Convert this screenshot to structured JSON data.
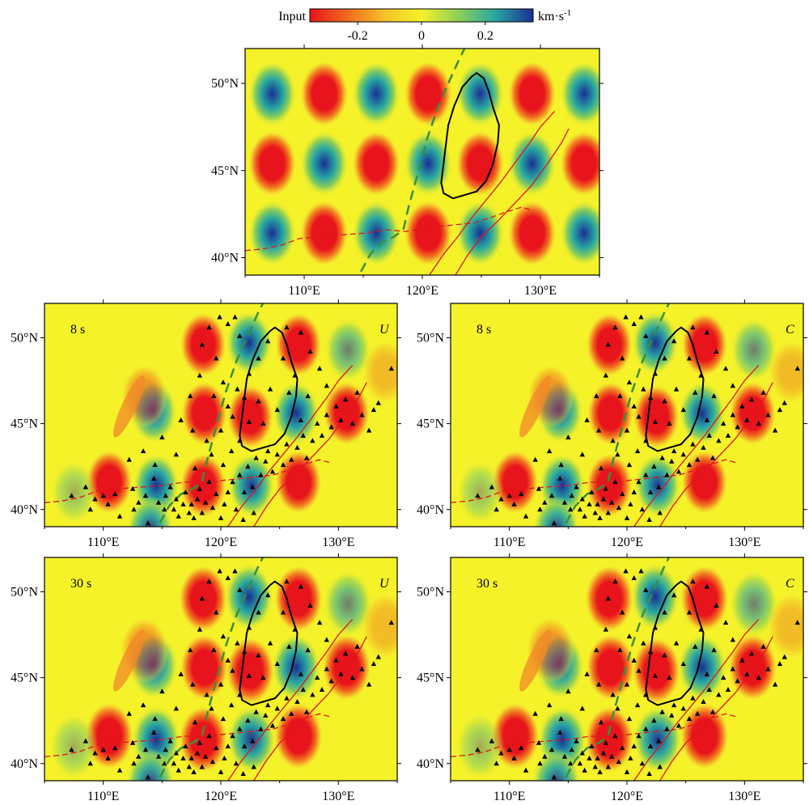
{
  "colorbar": {
    "left_label": "Input",
    "unit": "km·s",
    "unit_exp": "-1",
    "ticks": [
      {
        "value": -0.2,
        "label": "-0.2"
      },
      {
        "value": 0,
        "label": "0"
      },
      {
        "value": 0.2,
        "label": "0.2"
      }
    ],
    "range": [
      -0.35,
      0.35
    ],
    "colors": [
      "#e8141b",
      "#f06a1e",
      "#f4c12a",
      "#f5f22a",
      "#8ccf58",
      "#27a5a2",
      "#1a2f93"
    ]
  },
  "map": {
    "lon_range": [
      105,
      135
    ],
    "lat_range": [
      39,
      52
    ],
    "x_ticks": [
      {
        "value": 110,
        "label": "110°E"
      },
      {
        "value": 120,
        "label": "120°E"
      },
      {
        "value": 130,
        "label": "130°E"
      }
    ],
    "y_ticks": [
      {
        "value": 40,
        "label": "40°N"
      },
      {
        "value": 45,
        "label": "45°N"
      },
      {
        "value": 50,
        "label": "50°N"
      }
    ],
    "background_color": "#f5f22a",
    "fault_color": "#e0141b",
    "boundary_color": "#3a8f3a",
    "outline_color": "#000000"
  },
  "panels": [
    {
      "id": "input",
      "period": "",
      "method": ""
    },
    {
      "id": "u8",
      "period": "8 s",
      "method": "U"
    },
    {
      "id": "c8",
      "period": "8 s",
      "method": "C"
    },
    {
      "id": "u30",
      "period": "30 s",
      "method": "U"
    },
    {
      "id": "c30",
      "period": "30 s",
      "method": "C"
    }
  ],
  "chart_data": {
    "type": "heatmap",
    "title": "",
    "xlabel": "",
    "ylabel": "",
    "xlim": [
      105,
      135
    ],
    "ylim": [
      39,
      52
    ],
    "input_pattern": {
      "centers_lon": [
        107.3,
        111.7,
        116.1,
        120.5,
        124.9,
        129.3,
        133.7
      ],
      "centers_lat": [
        41.4,
        45.4,
        49.4
      ],
      "amplitude": 0.35,
      "unit": "km·s-1"
    },
    "recovered_anomalies": [
      {
        "lon": 110.5,
        "lat": 41.6,
        "value": -0.33
      },
      {
        "lon": 114.5,
        "lat": 41.4,
        "value": 0.33
      },
      {
        "lon": 118.5,
        "lat": 41.4,
        "value": -0.33
      },
      {
        "lon": 122.6,
        "lat": 41.4,
        "value": 0.32
      },
      {
        "lon": 126.6,
        "lat": 41.6,
        "value": -0.33
      },
      {
        "lon": 114.3,
        "lat": 45.7,
        "value": 0.3
      },
      {
        "lon": 118.6,
        "lat": 45.6,
        "value": -0.33
      },
      {
        "lon": 122.5,
        "lat": 45.4,
        "value": -0.33
      },
      {
        "lon": 126.4,
        "lat": 45.6,
        "value": 0.33
      },
      {
        "lon": 130.7,
        "lat": 45.6,
        "value": -0.33
      },
      {
        "lon": 118.5,
        "lat": 49.6,
        "value": -0.33
      },
      {
        "lon": 122.4,
        "lat": 49.7,
        "value": 0.33
      },
      {
        "lon": 126.6,
        "lat": 49.6,
        "value": -0.33
      },
      {
        "lon": 130.8,
        "lat": 49.3,
        "value": 0.2
      },
      {
        "lon": 114.0,
        "lat": 38.9,
        "value": 0.3
      },
      {
        "lon": 107.5,
        "lat": 41.0,
        "value": 0.12
      },
      {
        "lon": 113.5,
        "lat": 46.6,
        "value": -0.13
      },
      {
        "lon": 134.0,
        "lat": 48.0,
        "value": -0.08
      }
    ],
    "stations": [
      [
        107.3,
        40.8
      ],
      [
        108.5,
        41.3
      ],
      [
        109.3,
        40.6
      ],
      [
        110.0,
        40.8
      ],
      [
        111.0,
        40.9
      ],
      [
        111.4,
        39.6
      ],
      [
        112.5,
        41.2
      ],
      [
        113.0,
        40.4
      ],
      [
        113.6,
        40.8
      ],
      [
        114.3,
        41.8
      ],
      [
        114.7,
        40.4
      ],
      [
        115.2,
        40.0
      ],
      [
        115.3,
        40.8
      ],
      [
        115.7,
        41.3
      ],
      [
        116.0,
        40.0
      ],
      [
        116.2,
        40.6
      ],
      [
        116.4,
        39.6
      ],
      [
        116.8,
        40.3
      ],
      [
        117.0,
        41.0
      ],
      [
        117.3,
        39.8
      ],
      [
        117.5,
        40.3
      ],
      [
        117.7,
        39.5
      ],
      [
        118.0,
        40.6
      ],
      [
        118.2,
        41.2
      ],
      [
        118.4,
        39.8
      ],
      [
        118.7,
        40.4
      ],
      [
        119.0,
        41.6
      ],
      [
        119.3,
        40.1
      ],
      [
        119.6,
        40.9
      ],
      [
        120.0,
        39.5
      ],
      [
        120.3,
        40.3
      ],
      [
        120.6,
        41.0
      ],
      [
        121.0,
        41.6
      ],
      [
        121.3,
        40.0
      ],
      [
        121.6,
        42.0
      ],
      [
        122.0,
        41.0
      ],
      [
        122.3,
        42.5
      ],
      [
        122.7,
        41.3
      ],
      [
        123.0,
        43.0
      ],
      [
        123.4,
        42.0
      ],
      [
        123.8,
        42.8
      ],
      [
        124.0,
        43.4
      ],
      [
        124.4,
        42.2
      ],
      [
        124.8,
        43.2
      ],
      [
        125.3,
        42.6
      ],
      [
        125.6,
        43.8
      ],
      [
        126.0,
        42.9
      ],
      [
        126.5,
        43.6
      ],
      [
        127.0,
        44.3
      ],
      [
        127.3,
        43.0
      ],
      [
        127.8,
        44.0
      ],
      [
        128.2,
        45.0
      ],
      [
        128.6,
        44.3
      ],
      [
        129.0,
        45.5
      ],
      [
        129.4,
        44.8
      ],
      [
        129.8,
        46.0
      ],
      [
        130.2,
        45.2
      ],
      [
        130.6,
        46.4
      ],
      [
        131.2,
        45.0
      ],
      [
        131.6,
        46.8
      ],
      [
        132.0,
        45.5
      ],
      [
        133.0,
        45.8
      ],
      [
        134.5,
        48.2
      ],
      [
        133.4,
        46.2
      ],
      [
        120.6,
        50.8
      ],
      [
        121.2,
        51.2
      ],
      [
        121.6,
        50.1
      ],
      [
        119.0,
        50.6
      ],
      [
        118.4,
        49.6
      ],
      [
        119.6,
        48.8
      ],
      [
        120.2,
        47.4
      ],
      [
        121.4,
        47.0
      ],
      [
        120.6,
        46.0
      ],
      [
        119.4,
        46.6
      ],
      [
        118.2,
        47.8
      ],
      [
        117.4,
        46.6
      ],
      [
        116.6,
        45.2
      ],
      [
        115.0,
        44.2
      ],
      [
        113.4,
        43.4
      ],
      [
        112.2,
        42.9
      ],
      [
        116.2,
        43.2
      ],
      [
        117.6,
        44.6
      ],
      [
        118.8,
        44.0
      ],
      [
        120.0,
        44.6
      ],
      [
        121.6,
        44.0
      ],
      [
        122.4,
        45.1
      ],
      [
        123.2,
        46.3
      ],
      [
        124.2,
        47.0
      ],
      [
        124.8,
        45.8
      ],
      [
        125.8,
        46.8
      ],
      [
        126.3,
        47.8
      ],
      [
        125.3,
        48.8
      ],
      [
        124.0,
        49.8
      ],
      [
        123.2,
        48.8
      ],
      [
        122.4,
        47.9
      ],
      [
        125.6,
        50.6
      ],
      [
        126.8,
        50.3
      ],
      [
        127.6,
        49.2
      ],
      [
        128.4,
        48.2
      ],
      [
        129.0,
        47.2
      ],
      [
        127.4,
        46.6
      ],
      [
        126.8,
        45.2
      ],
      [
        120.2,
        42.6
      ],
      [
        119.2,
        43.2
      ],
      [
        117.8,
        42.4
      ],
      [
        120.9,
        43.4
      ],
      [
        114.4,
        42.6
      ],
      [
        112.6,
        40.0
      ],
      [
        110.4,
        40.3
      ],
      [
        108.9,
        40.0
      ],
      [
        113.8,
        39.2
      ],
      [
        122.8,
        39.8
      ],
      [
        121.9,
        39.4
      ],
      [
        119.9,
        51.2
      ],
      [
        132.6,
        44.6
      ],
      [
        123.6,
        45.0
      ],
      [
        122.0,
        46.5
      ],
      [
        121.0,
        45.4
      ]
    ]
  }
}
